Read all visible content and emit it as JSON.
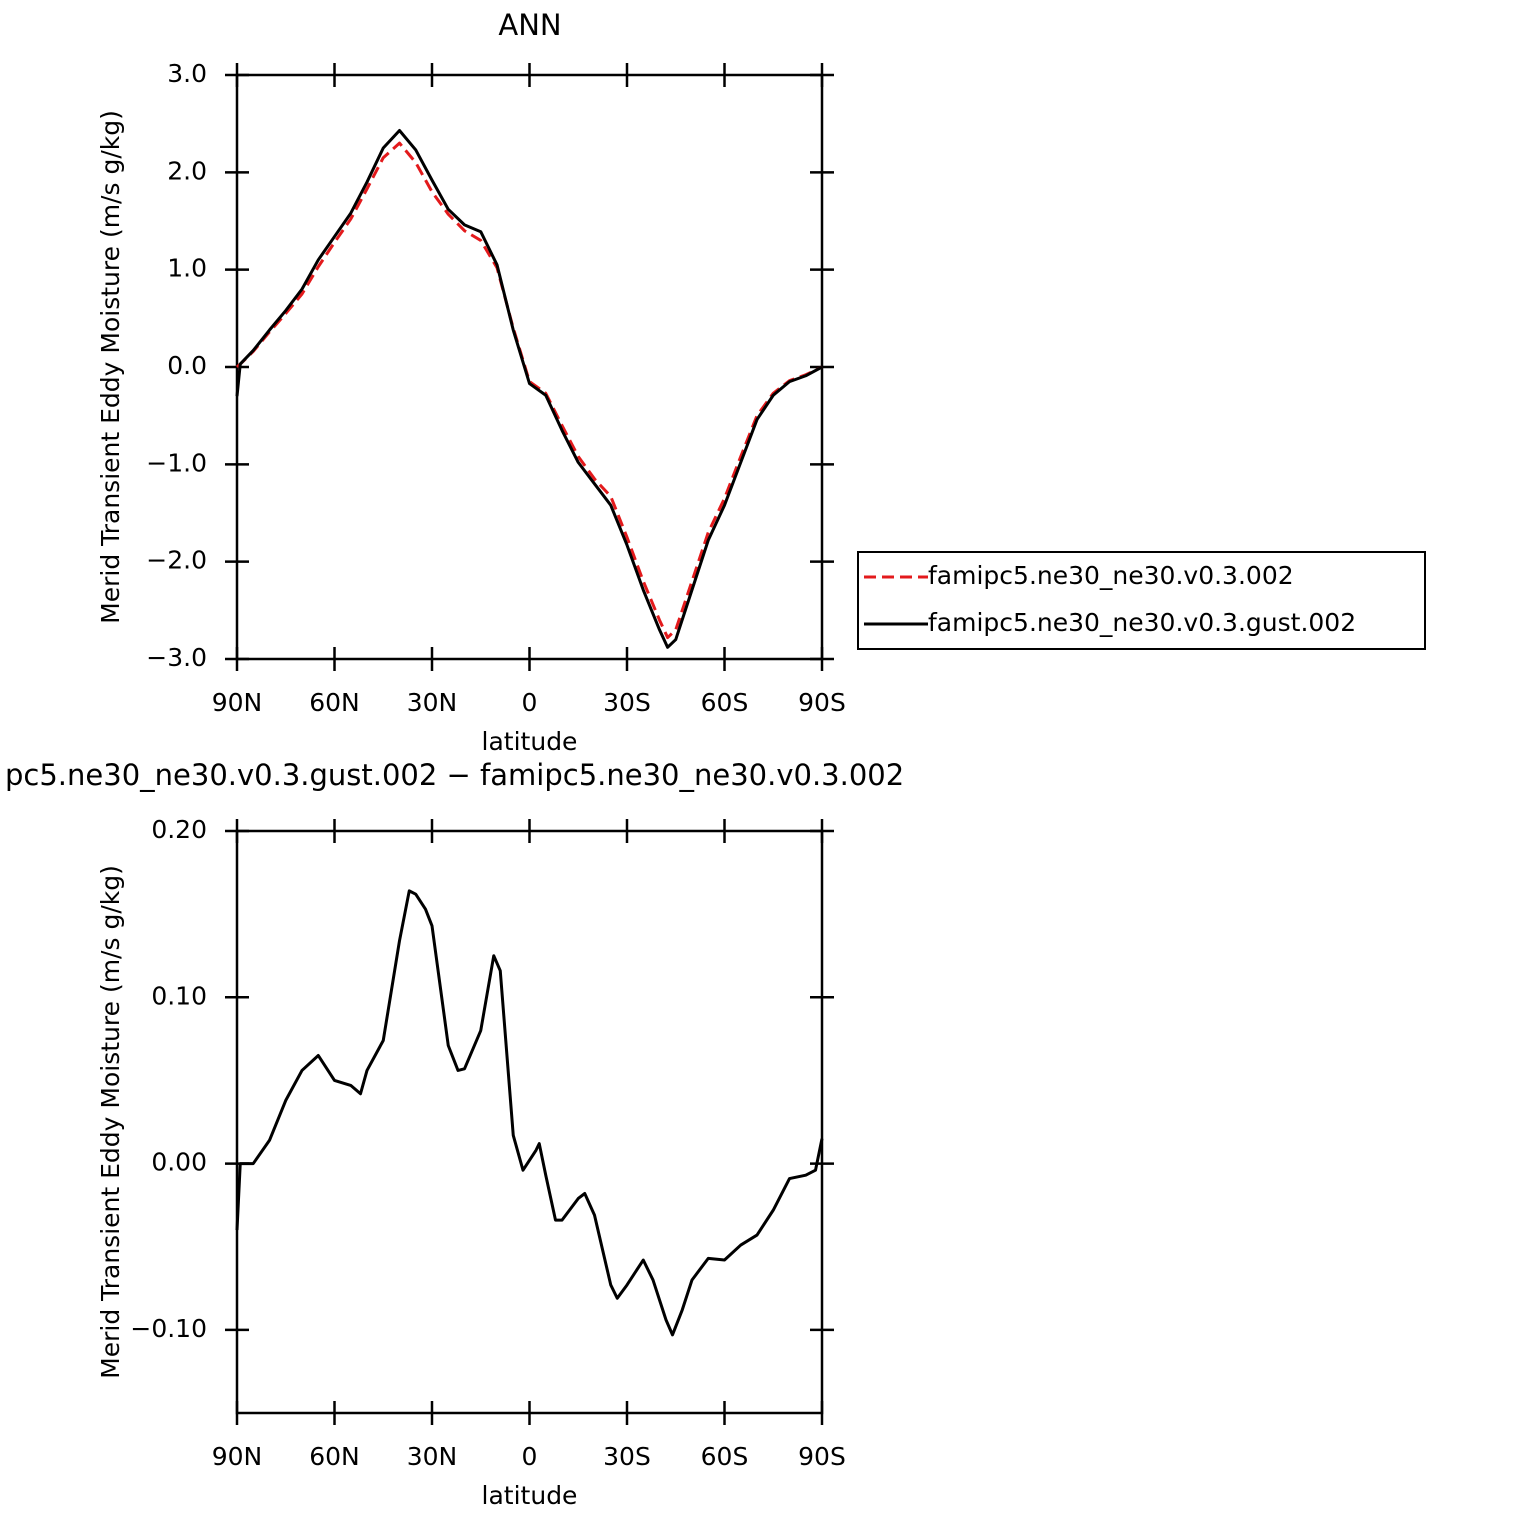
{
  "chart_data": [
    {
      "type": "line",
      "title": "ANN",
      "xlabel": "latitude",
      "ylabel": "Merid Transient Eddy Moisture (m/s g/kg)",
      "x": [
        90,
        89,
        85,
        80,
        75,
        70,
        65,
        60,
        55,
        50,
        45,
        40,
        35,
        30,
        25,
        20,
        15,
        10,
        5,
        0,
        -5,
        -10,
        -15,
        -20,
        -25,
        -30,
        -35,
        -40,
        -42.5,
        -45,
        -50,
        -55,
        -60,
        -65,
        -70,
        -75,
        -80,
        -85,
        -90
      ],
      "series": [
        {
          "name": "famipc5.ne30_ne30.v0.3.002",
          "color": "#e31a1c",
          "dash": true,
          "values": [
            0.0,
            0.03,
            0.16,
            0.36,
            0.55,
            0.75,
            1.03,
            1.28,
            1.52,
            1.83,
            2.15,
            2.3,
            2.1,
            1.8,
            1.57,
            1.4,
            1.3,
            1.02,
            0.4,
            -0.15,
            -0.27,
            -0.6,
            -0.92,
            -1.15,
            -1.33,
            -1.75,
            -2.2,
            -2.6,
            -2.78,
            -2.7,
            -2.2,
            -1.7,
            -1.35,
            -0.92,
            -0.5,
            -0.27,
            -0.14,
            -0.08,
            0.0
          ]
        },
        {
          "name": "famipc5.ne30_ne30.v0.3.gust.002",
          "color": "#000000",
          "dash": false,
          "values": [
            -0.3,
            0.03,
            0.17,
            0.38,
            0.58,
            0.8,
            1.1,
            1.34,
            1.58,
            1.9,
            2.25,
            2.43,
            2.23,
            1.92,
            1.62,
            1.46,
            1.39,
            1.05,
            0.38,
            -0.17,
            -0.29,
            -0.65,
            -0.98,
            -1.2,
            -1.42,
            -1.83,
            -2.29,
            -2.7,
            -2.88,
            -2.8,
            -2.29,
            -1.78,
            -1.42,
            -0.98,
            -0.54,
            -0.29,
            -0.15,
            -0.09,
            0.0
          ]
        }
      ],
      "xlim": [
        90,
        -90
      ],
      "xticks": [
        {
          "value": 90,
          "label": "90N"
        },
        {
          "value": 60,
          "label": "60N"
        },
        {
          "value": 30,
          "label": "30N"
        },
        0,
        {
          "value": -30,
          "label": "30S"
        },
        {
          "value": -60,
          "label": "60S"
        },
        {
          "value": -90,
          "label": "90S"
        }
      ],
      "ylim": [
        -3,
        3
      ],
      "yticks": [
        {
          "value": 3,
          "label": "3.0"
        },
        {
          "value": 2,
          "label": "2.0"
        },
        {
          "value": 1,
          "label": "1.0"
        },
        {
          "value": 0,
          "label": "0.0"
        },
        {
          "value": -1,
          "label": "−1.0"
        },
        {
          "value": -2,
          "label": "−2.0"
        },
        {
          "value": -3,
          "label": "−3.0"
        }
      ],
      "legend": "right"
    },
    {
      "type": "line",
      "title": "pc5.ne30_ne30.v0.3.gust.002 − famipc5.ne30_ne30.v0.3.002",
      "xlabel": "latitude",
      "ylabel": "Merid Transient Eddy Moisture (m/s g/kg)",
      "x": [
        90,
        89,
        85,
        80,
        75,
        70,
        65,
        60,
        55,
        52,
        50,
        45,
        40,
        37,
        35,
        32,
        30,
        25,
        22,
        20,
        15,
        11,
        9,
        5,
        2,
        -2,
        -3,
        -5,
        -8,
        -10,
        -15,
        -17,
        -20,
        -25,
        -27,
        -30,
        -35,
        -38,
        -42,
        -44,
        -47,
        -50,
        -55,
        -60,
        -65,
        -70,
        -75,
        -80,
        -85,
        -88,
        -90
      ],
      "series": [
        {
          "name": null,
          "color": "#000000",
          "dash": false,
          "values": [
            -0.04,
            0.0,
            0.0,
            0.014,
            0.038,
            0.056,
            0.065,
            0.05,
            0.047,
            0.042,
            0.056,
            0.074,
            0.134,
            0.164,
            0.162,
            0.153,
            0.143,
            0.071,
            0.056,
            0.057,
            0.08,
            0.125,
            0.116,
            0.017,
            -0.004,
            0.008,
            0.012,
            -0.007,
            -0.034,
            -0.034,
            -0.021,
            -0.018,
            -0.031,
            -0.073,
            -0.081,
            -0.073,
            -0.058,
            -0.07,
            -0.094,
            -0.103,
            -0.088,
            -0.07,
            -0.057,
            -0.058,
            -0.049,
            -0.043,
            -0.028,
            -0.009,
            -0.007,
            -0.004,
            0.015
          ]
        }
      ],
      "xlim": [
        90,
        -90
      ],
      "xticks": [
        {
          "value": 90,
          "label": "90N"
        },
        {
          "value": 60,
          "label": "60N"
        },
        {
          "value": 30,
          "label": "30N"
        },
        0,
        {
          "value": -30,
          "label": "30S"
        },
        {
          "value": -60,
          "label": "60S"
        },
        {
          "value": -90,
          "label": "90S"
        }
      ],
      "ylim": [
        -0.15,
        0.2
      ],
      "yticks": [
        {
          "value": 0.2,
          "label": "0.20"
        },
        {
          "value": 0.1,
          "label": "0.10"
        },
        {
          "value": 0,
          "label": "0.00"
        },
        {
          "value": -0.1,
          "label": "−0.10"
        }
      ]
    }
  ]
}
